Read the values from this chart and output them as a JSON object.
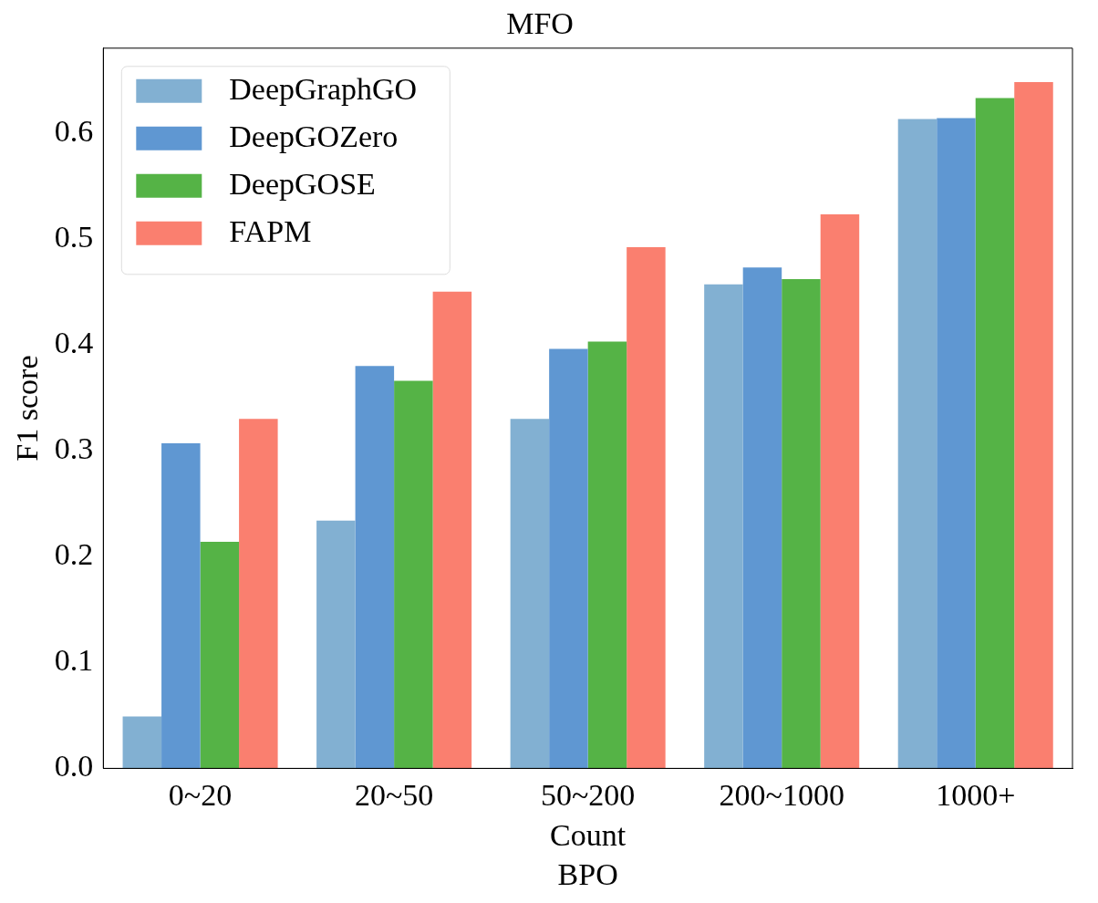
{
  "chart_data": {
    "type": "bar",
    "title": "MFO",
    "xlabel": "Count",
    "ylabel": "F1 score",
    "annotations": [
      "BPO"
    ],
    "categories": [
      "0~20",
      "20~50",
      "50~200",
      "200~1000",
      "1000+"
    ],
    "series": [
      {
        "name": "DeepGraphGO",
        "color": "#82b0d2",
        "values": [
          0.049,
          0.234,
          0.33,
          0.457,
          0.613
        ]
      },
      {
        "name": "DeepGOZero",
        "color": "#5f97d2",
        "values": [
          0.307,
          0.38,
          0.396,
          0.473,
          0.614
        ]
      },
      {
        "name": "DeepGOSE",
        "color": "#55b346",
        "values": [
          0.214,
          0.366,
          0.403,
          0.462,
          0.633
        ]
      },
      {
        "name": "FAPM",
        "color": "#fa7f6f",
        "values": [
          0.33,
          0.45,
          0.492,
          0.523,
          0.648
        ]
      }
    ],
    "ylim": [
      0,
      0.68
    ],
    "yticks": [
      {
        "value": 0,
        "label": "0.0"
      },
      {
        "value": 0.1,
        "label": "0.1"
      },
      {
        "value": 0.2,
        "label": "0.2"
      },
      {
        "value": 0.3,
        "label": "0.3"
      },
      {
        "value": 0.4,
        "label": "0.4"
      },
      {
        "value": 0.5,
        "label": "0.5"
      },
      {
        "value": 0.6,
        "label": "0.6"
      }
    ],
    "legend": "top left",
    "grid": false
  }
}
